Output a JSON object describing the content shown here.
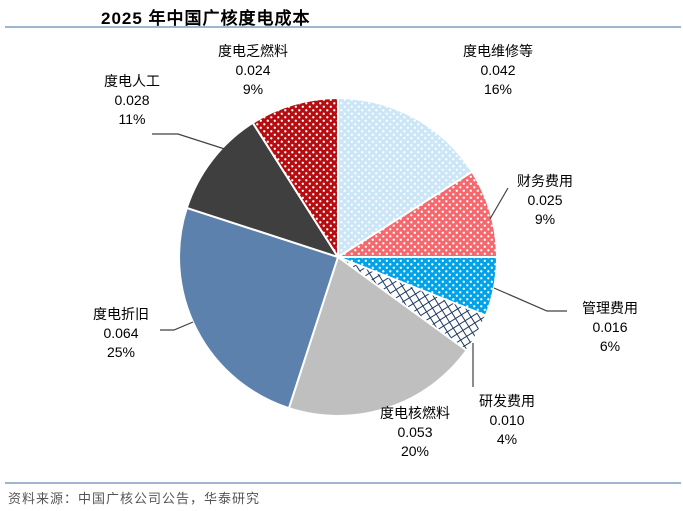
{
  "page": {
    "title": "2025 年中国广核度电成本",
    "source_note": "资料来源：中国广核公司公告，华泰研究"
  },
  "chart_data": {
    "type": "pie",
    "title": "2025 年中国广核度电成本",
    "start_angle": "top",
    "direction": "clockwise",
    "legend_position": "none",
    "slices": [
      {
        "label": "度电维修等",
        "value": 0.042,
        "value_label": "0.042",
        "percent": 16,
        "percent_label": "16%",
        "color": "#cbe6f7",
        "pattern": "dots",
        "pattern_color": "#ffffff"
      },
      {
        "label": "财务费用",
        "value": 0.025,
        "value_label": "0.025",
        "percent": 9,
        "percent_label": "9%",
        "color": "#f5696e",
        "pattern": "dots",
        "pattern_color": "#ffffff"
      },
      {
        "label": "管理费用",
        "value": 0.016,
        "value_label": "0.016",
        "percent": 6,
        "percent_label": "6%",
        "color": "#00a2e8",
        "pattern": "dots",
        "pattern_color": "#ffffff"
      },
      {
        "label": "研发费用",
        "value": 0.01,
        "value_label": "0.010",
        "percent": 4,
        "percent_label": "4%",
        "color": "#1f3864",
        "pattern": "crosshatch",
        "pattern_bg": "#ffffff"
      },
      {
        "label": "度电核燃料",
        "value": 0.053,
        "value_label": "0.053",
        "percent": 20,
        "percent_label": "20%",
        "color": "#bfbfbf",
        "pattern": "solid"
      },
      {
        "label": "度电折旧",
        "value": 0.064,
        "value_label": "0.064",
        "percent": 25,
        "percent_label": "25%",
        "color": "#5b81ac",
        "pattern": "solid"
      },
      {
        "label": "度电人工",
        "value": 0.028,
        "value_label": "0.028",
        "percent": 11,
        "percent_label": "11%",
        "color": "#3f3f3f",
        "pattern": "solid"
      },
      {
        "label": "度电乏燃料",
        "value": 0.024,
        "value_label": "0.024",
        "percent": 9,
        "percent_label": "9%",
        "color": "#b60d10",
        "pattern": "dots",
        "pattern_color": "#ffffff"
      }
    ],
    "leader_line_color": "#404040",
    "slice_border_color": "#ffffff"
  }
}
